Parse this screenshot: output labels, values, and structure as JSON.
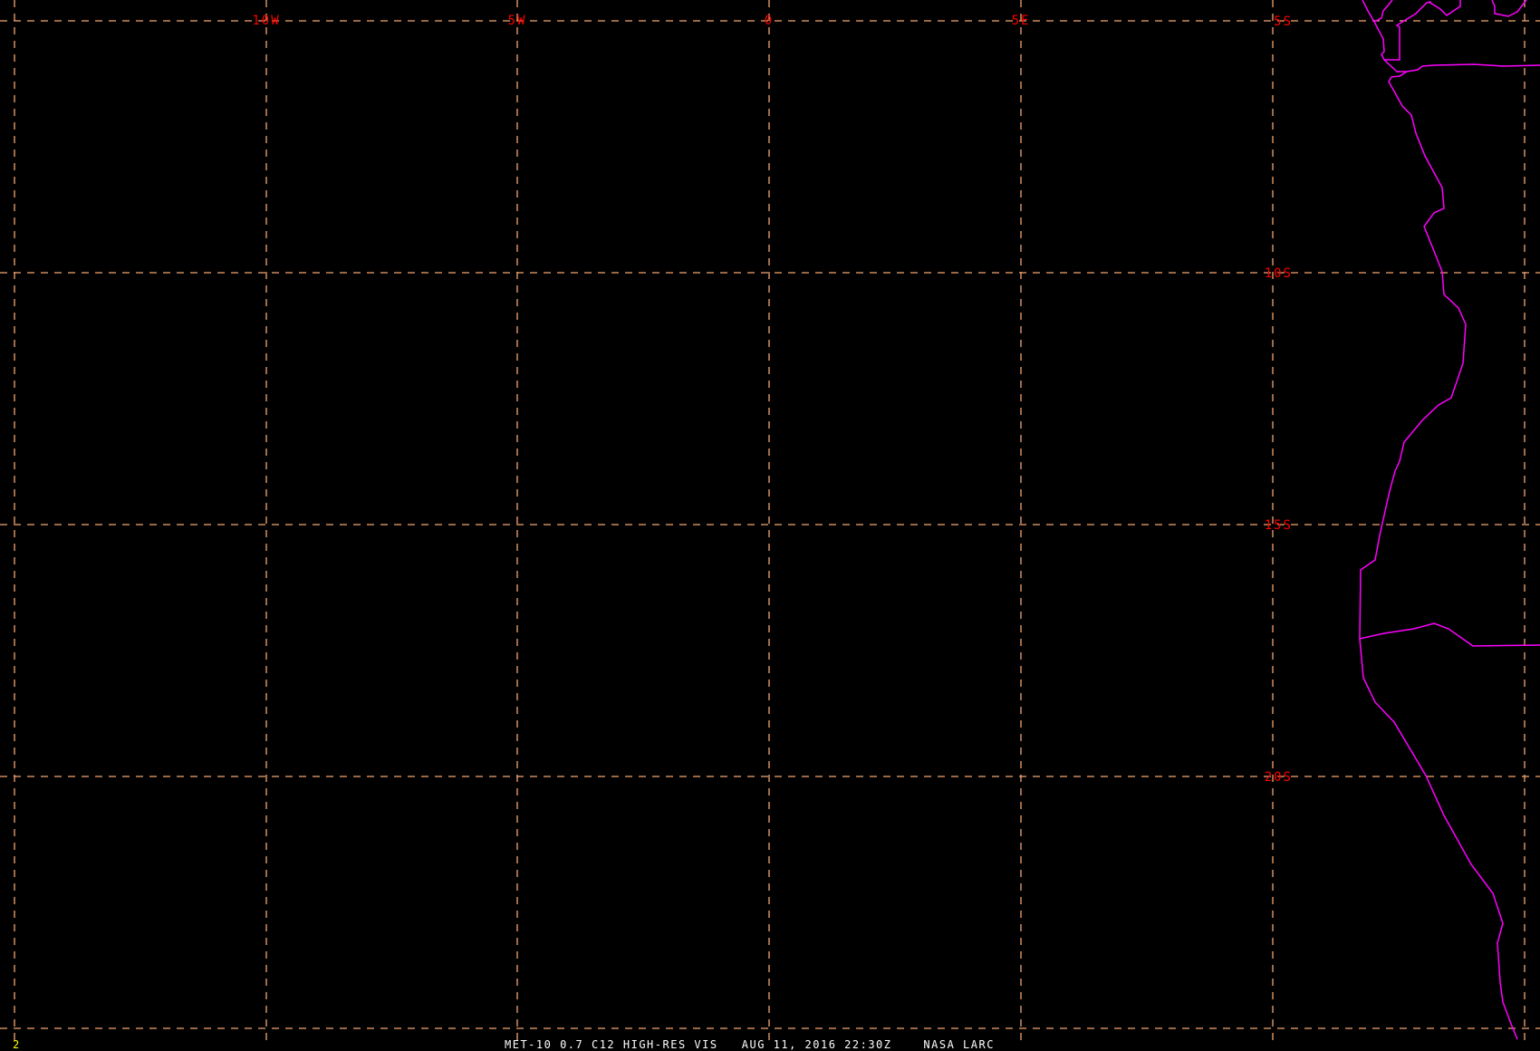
{
  "map": {
    "grid_color": "#f4a672",
    "label_color": "#ff0000",
    "coastline_color": "#ff00ff",
    "longitude_labels": [
      "10W",
      "5W",
      "0",
      "5E"
    ],
    "latitude_labels": [
      "5S",
      "10S",
      "15S",
      "20S"
    ]
  },
  "footer": {
    "frame_number": "2",
    "caption": "MET-10 0.7 C12 HIGH-RES VIS   AUG 11, 2016 22:30Z    NASA LARC"
  }
}
